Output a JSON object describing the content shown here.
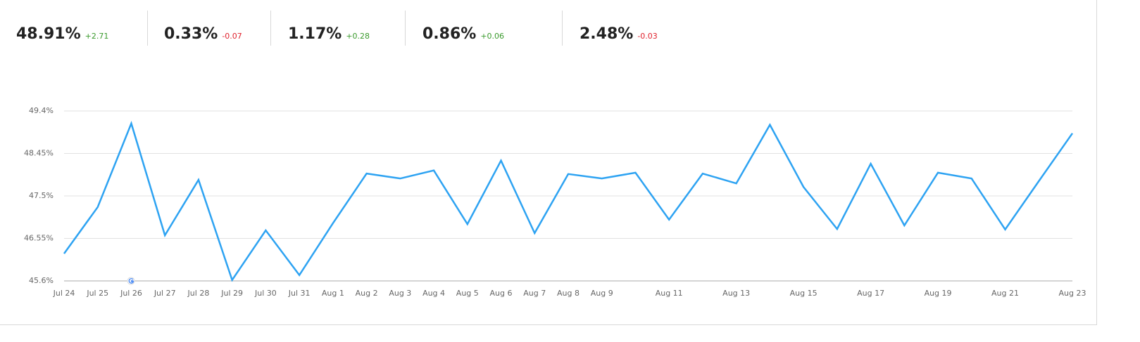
{
  "metrics": [
    {
      "value": "48.91%",
      "change": "+2.71",
      "change_color": "#3a9a2c"
    },
    {
      "value": "0.33%",
      "change": "-0.07",
      "change_color": "#e0232e"
    },
    {
      "value": "1.17%",
      "change": "+0.28",
      "change_color": "#3a9a2c"
    },
    {
      "value": "0.86%",
      "change": "+0.06",
      "change_color": "#3a9a2c"
    },
    {
      "value": "2.48%",
      "change": "-0.03",
      "change_color": "#e0232e"
    }
  ],
  "chart_data": {
    "type": "line",
    "categories": [
      "Jul 24",
      "Jul 25",
      "Jul 26",
      "Jul 27",
      "Jul 28",
      "Jul 29",
      "Jul 30",
      "Jul 31",
      "Aug 1",
      "Aug 2",
      "Aug 3",
      "Aug 4",
      "Aug 5",
      "Aug 6",
      "Aug 7",
      "Aug 8",
      "Aug 9",
      null,
      "Aug 11",
      null,
      "Aug 13",
      null,
      "Aug 15",
      null,
      "Aug 17",
      null,
      "Aug 19",
      null,
      "Aug 21",
      null,
      "Aug 23"
    ],
    "series": [
      {
        "color": "#2ea3f2",
        "values": [
          46.21,
          47.25,
          49.12,
          46.62,
          47.86,
          45.62,
          46.73,
          45.73,
          46.89,
          48.0,
          47.89,
          48.07,
          46.87,
          48.29,
          46.67,
          47.99,
          47.89,
          48.02,
          46.97,
          48.0,
          47.78,
          49.09,
          47.7,
          46.76,
          48.22,
          46.84,
          48.02,
          47.89,
          46.75,
          47.83,
          48.9
        ]
      }
    ],
    "ylim": [
      45.6,
      49.4
    ],
    "yticks": [
      {
        "value": 45.6,
        "label": "45.6%"
      },
      {
        "value": 46.55,
        "label": "46.55%"
      },
      {
        "value": 47.5,
        "label": "47.5%"
      },
      {
        "value": 48.45,
        "label": "48.45%"
      },
      {
        "value": 49.4,
        "label": "49.4%"
      }
    ],
    "grid": true
  }
}
